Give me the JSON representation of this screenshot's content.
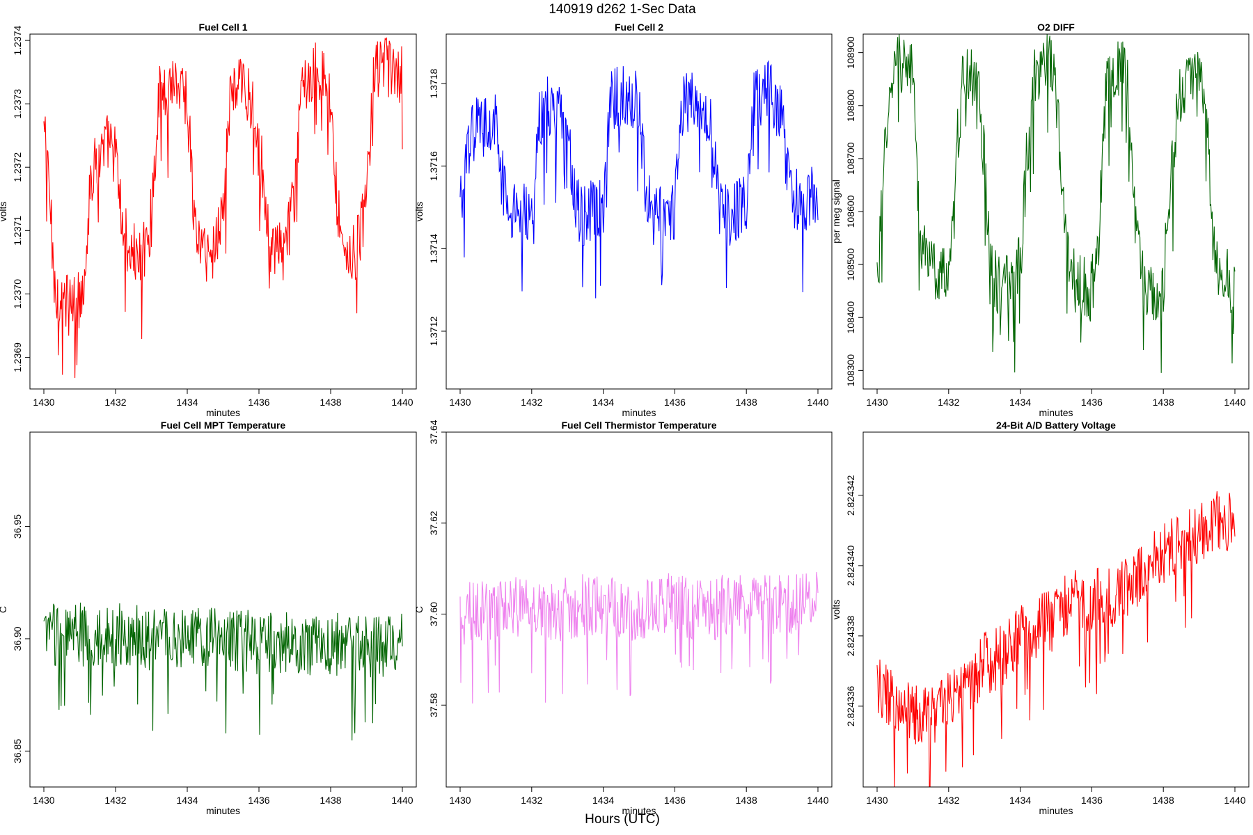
{
  "figure": {
    "title": "140919   d262   1-Sec Data",
    "bottom_label": "Hours (UTC)"
  },
  "chart_data": [
    {
      "type": "line",
      "title": "Fuel Cell 1",
      "xlabel": "minutes",
      "ylabel": "volts",
      "color": "#ff0000",
      "xlim": [
        1430,
        1440
      ],
      "ylim": [
        1.23685,
        1.23741
      ],
      "xticks": [
        "1430",
        "1432",
        "1434",
        "1436",
        "1438",
        "1440"
      ],
      "yticks": [
        "1.2369",
        "1.2370",
        "1.2371",
        "1.2372",
        "1.2373",
        "1.2374"
      ],
      "x": [
        1430.0,
        1430.1,
        1430.3,
        1430.5,
        1430.8,
        1431.0,
        1431.15,
        1431.3,
        1431.5,
        1431.8,
        1432.0,
        1432.2,
        1432.4,
        1432.7,
        1433.0,
        1433.2,
        1433.4,
        1433.7,
        1434.0,
        1434.2,
        1434.4,
        1434.7,
        1435.0,
        1435.2,
        1435.4,
        1435.7,
        1436.0,
        1436.2,
        1436.4,
        1436.7,
        1437.0,
        1437.2,
        1437.4,
        1437.7,
        1438.0,
        1438.2,
        1438.4,
        1438.7,
        1439.0,
        1439.2,
        1439.4,
        1439.7,
        1440.0
      ],
      "y": [
        1.23726,
        1.23722,
        1.23701,
        1.23699,
        1.23698,
        1.23699,
        1.23704,
        1.23718,
        1.23721,
        1.23724,
        1.23722,
        1.2371,
        1.23707,
        1.23705,
        1.23712,
        1.23731,
        1.23733,
        1.23734,
        1.23731,
        1.23711,
        1.23707,
        1.23706,
        1.23714,
        1.23731,
        1.23733,
        1.23732,
        1.23726,
        1.23711,
        1.23706,
        1.23707,
        1.23715,
        1.23733,
        1.23735,
        1.23735,
        1.23731,
        1.23713,
        1.23707,
        1.23706,
        1.23715,
        1.23734,
        1.23736,
        1.23735,
        1.23734
      ]
    },
    {
      "type": "line",
      "title": "Fuel Cell 2",
      "xlabel": "minutes",
      "ylabel": "volts",
      "color": "#0000ff",
      "xlim": [
        1430,
        1440
      ],
      "ylim": [
        1.37106,
        1.37192
      ],
      "xticks": [
        "1430",
        "1432",
        "1434",
        "1436",
        "1438",
        "1440"
      ],
      "yticks": [
        "1.3712",
        "1.3714",
        "1.3716",
        "1.3718"
      ],
      "x": [
        1430.0,
        1430.1,
        1430.3,
        1430.5,
        1430.8,
        1431.0,
        1431.2,
        1431.3,
        1431.5,
        1431.8,
        1432.0,
        1432.2,
        1432.4,
        1432.7,
        1433.0,
        1433.2,
        1433.4,
        1433.7,
        1434.0,
        1434.2,
        1434.4,
        1434.7,
        1435.0,
        1435.2,
        1435.4,
        1435.7,
        1436.0,
        1436.2,
        1436.4,
        1436.7,
        1437.0,
        1437.2,
        1437.4,
        1437.7,
        1438.0,
        1438.2,
        1438.4,
        1438.7,
        1439.0,
        1439.2,
        1439.4,
        1439.7,
        1440.0
      ],
      "y": [
        1.3715,
        1.37154,
        1.37168,
        1.3717,
        1.3717,
        1.3717,
        1.37162,
        1.37148,
        1.37148,
        1.37149,
        1.3715,
        1.37172,
        1.37174,
        1.37174,
        1.37172,
        1.37151,
        1.37148,
        1.37149,
        1.3715,
        1.37176,
        1.37177,
        1.37177,
        1.37176,
        1.37152,
        1.37148,
        1.37149,
        1.3715,
        1.37174,
        1.37176,
        1.37176,
        1.37172,
        1.37152,
        1.37148,
        1.37149,
        1.37152,
        1.37176,
        1.37177,
        1.37178,
        1.37172,
        1.37154,
        1.37152,
        1.37152,
        1.37154
      ]
    },
    {
      "type": "line",
      "title": "O2 DIFF",
      "xlabel": "minutes",
      "ylabel": "per meg signal",
      "color": "#006400",
      "xlim": [
        1430,
        1440
      ],
      "ylim": [
        108265,
        108935
      ],
      "xticks": [
        "1430",
        "1432",
        "1434",
        "1436",
        "1438",
        "1440"
      ],
      "yticks": [
        "108300",
        "108400",
        "108500",
        "108600",
        "108700",
        "108800",
        "108900"
      ],
      "x": [
        1430.0,
        1430.1,
        1430.2,
        1430.4,
        1430.6,
        1430.8,
        1431.0,
        1431.1,
        1431.2,
        1431.4,
        1431.6,
        1431.8,
        1432.0,
        1432.2,
        1432.4,
        1432.6,
        1432.8,
        1433.0,
        1433.2,
        1433.4,
        1433.6,
        1433.8,
        1434.0,
        1434.2,
        1434.4,
        1434.6,
        1434.8,
        1435.0,
        1435.2,
        1435.4,
        1435.6,
        1435.8,
        1436.0,
        1436.2,
        1436.4,
        1436.6,
        1436.8,
        1437.0,
        1437.2,
        1437.4,
        1437.6,
        1437.8,
        1438.0,
        1438.2,
        1438.4,
        1438.6,
        1438.8,
        1439.0,
        1439.2,
        1439.4,
        1439.6,
        1439.8,
        1440.0
      ],
      "y": [
        108480,
        108560,
        108700,
        108860,
        108880,
        108890,
        108850,
        108700,
        108560,
        108500,
        108490,
        108480,
        108500,
        108700,
        108850,
        108860,
        108850,
        108700,
        108480,
        108460,
        108460,
        108460,
        108500,
        108720,
        108860,
        108880,
        108880,
        108840,
        108600,
        108480,
        108460,
        108460,
        108450,
        108560,
        108830,
        108860,
        108870,
        108860,
        108600,
        108470,
        108450,
        108450,
        108470,
        108640,
        108800,
        108840,
        108860,
        108880,
        108800,
        108540,
        108480,
        108470,
        108460
      ]
    },
    {
      "type": "line",
      "title": "Fuel Cell MPT Temperature",
      "xlabel": "minutes",
      "ylabel": "C",
      "color": "#006400",
      "xlim": [
        1430,
        1440
      ],
      "ylim": [
        36.834,
        36.992
      ],
      "xticks": [
        "1430",
        "1432",
        "1434",
        "1436",
        "1438",
        "1440"
      ],
      "yticks": [
        "36.85",
        "36.90",
        "36.95"
      ],
      "x": [
        1430,
        1430.5,
        1431,
        1431.5,
        1432,
        1432.5,
        1433,
        1433.5,
        1434,
        1434.5,
        1435,
        1435.5,
        1436,
        1436.5,
        1437,
        1437.5,
        1438,
        1438.5,
        1439,
        1439.5,
        1440
      ],
      "y": [
        36.901,
        36.903,
        36.902,
        36.901,
        36.902,
        36.901,
        36.9,
        36.901,
        36.901,
        36.9,
        36.9,
        36.899,
        36.898,
        36.898,
        36.898,
        36.897,
        36.898,
        36.897,
        36.897,
        36.897,
        36.897
      ]
    },
    {
      "type": "line",
      "title": "Fuel Cell Thermistor Temperature",
      "xlabel": "minutes",
      "ylabel": "C",
      "color": "#ee82ee",
      "xlim": [
        1430,
        1440
      ],
      "ylim": [
        37.562,
        37.64
      ],
      "xticks": [
        "1430",
        "1432",
        "1434",
        "1436",
        "1438",
        "1440"
      ],
      "yticks": [
        "37.58",
        "37.60",
        "37.62",
        "37.64"
      ],
      "x": [
        1430,
        1430.5,
        1431,
        1431.5,
        1432,
        1432.5,
        1433,
        1433.5,
        1434,
        1434.5,
        1435,
        1435.5,
        1436,
        1436.5,
        1437,
        1437.5,
        1438,
        1438.5,
        1439,
        1439.5,
        1440
      ],
      "y": [
        37.6,
        37.601,
        37.601,
        37.602,
        37.602,
        37.601,
        37.601,
        37.602,
        37.602,
        37.601,
        37.601,
        37.602,
        37.602,
        37.601,
        37.601,
        37.602,
        37.602,
        37.602,
        37.602,
        37.603,
        37.603
      ]
    },
    {
      "type": "line",
      "title": "24-Bit A/D Battery Voltage",
      "xlabel": "minutes",
      "ylabel": "volts",
      "color": "#ff0000",
      "xlim": [
        1430,
        1440
      ],
      "ylim": [
        2.8243337,
        2.8243438
      ],
      "xticks": [
        "1430",
        "1432",
        "1434",
        "1436",
        "1438",
        "1440"
      ],
      "yticks": [
        "2.824336",
        "2.824338",
        "2.824340",
        "2.824342"
      ],
      "x": [
        1430,
        1430.5,
        1431,
        1431.5,
        1432,
        1432.5,
        1433,
        1433.5,
        1434,
        1434.5,
        1435,
        1435.5,
        1436,
        1436.5,
        1437,
        1437.5,
        1438,
        1438.5,
        1439,
        1439.5,
        1440
      ],
      "y": [
        2.8243366,
        2.824336,
        2.8243358,
        2.8243356,
        2.8243362,
        2.8243366,
        2.8243372,
        2.8243374,
        2.824338,
        2.8243383,
        2.8243385,
        2.8243392,
        2.824339,
        2.8243391,
        2.8243394,
        2.82434,
        2.8243403,
        2.8243406,
        2.824341,
        2.8243413,
        2.8243412
      ]
    }
  ]
}
